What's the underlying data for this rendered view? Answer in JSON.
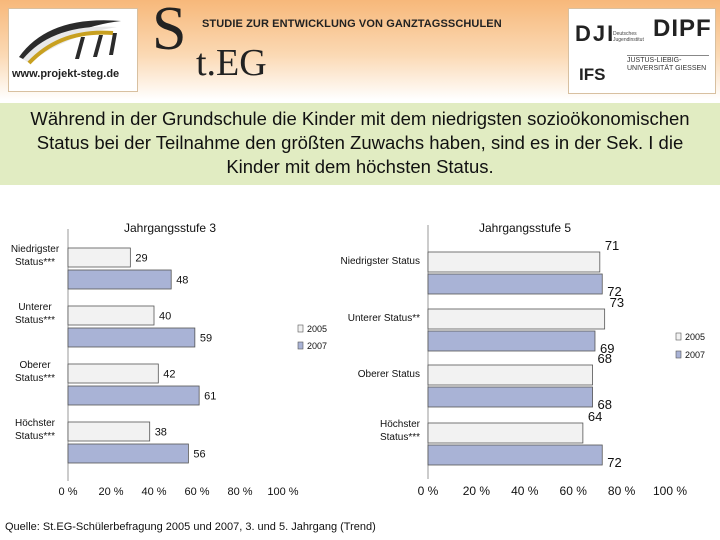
{
  "header": {
    "website": "www.projekt-steg.de",
    "steg_s": "S",
    "steg_rest": "t.EG",
    "study_title": "STUDIE ZUR ENTWICKLUNG VON GANZTAGSSCHULEN",
    "partners": {
      "dji": "DJI",
      "dji_sub": "Deutsches Jugendinstitut",
      "dipf": "DIPF",
      "ifs": "IFS",
      "jlu": "JUSTUS-LIEBIG-UNIVERSITÄT GIESSEN"
    }
  },
  "headline": "Während in der Grundschule die Kinder mit dem niedrigsten sozioökonomischen Status bei der Teilnahme den größten Zuwachs haben, sind es in der Sek. I die Kinder mit dem höchsten Status.",
  "source": "Quelle: St.EG-Schülerbefragung 2005 und 2007, 3. und 5. Jahrgang (Trend)",
  "colors": {
    "series_2005": "#f2f2f2",
    "series_2007": "#a9b3d6",
    "edge": "#555555",
    "axis": "#9a9a9a"
  },
  "chart_data": [
    {
      "type": "bar",
      "orientation": "horizontal",
      "title": "Jahrgangsstufe 3",
      "categories": [
        "Niedrigster Status***",
        "Unterer Status***",
        "Oberer Status***",
        "Höchster Status***"
      ],
      "series": [
        {
          "name": "2005",
          "values": [
            29,
            40,
            42,
            38
          ]
        },
        {
          "name": "2007",
          "values": [
            48,
            59,
            61,
            56
          ]
        }
      ],
      "xlim": [
        0,
        100
      ],
      "xticks": [
        "0 %",
        "20 %",
        "40 %",
        "60 %",
        "80 %",
        "100 %"
      ],
      "legend_position": "right"
    },
    {
      "type": "bar",
      "orientation": "horizontal",
      "title": "Jahrgangsstufe 5",
      "categories": [
        "Niedrigster Status",
        "Unterer Status**",
        "Oberer Status",
        "Höchster Status***"
      ],
      "series": [
        {
          "name": "2005",
          "values": [
            71,
            73,
            68,
            64
          ]
        },
        {
          "name": "2007",
          "values": [
            72,
            69,
            68,
            72
          ]
        }
      ],
      "xlim": [
        0,
        100
      ],
      "xticks": [
        "0 %",
        "20 %",
        "40 %",
        "60 %",
        "80 %",
        "100 %"
      ],
      "legend_position": "right"
    }
  ]
}
